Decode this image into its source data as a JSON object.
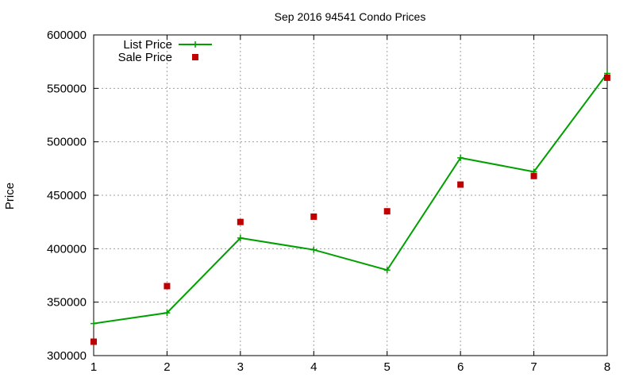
{
  "chart_data": {
    "type": "line",
    "title": "Sep 2016 94541 Condo Prices",
    "xlabel": "",
    "ylabel": "Price",
    "xlim": [
      1,
      8
    ],
    "ylim": [
      300000,
      600000
    ],
    "x_ticks": [
      1,
      2,
      3,
      4,
      5,
      6,
      7,
      8
    ],
    "y_ticks": [
      300000,
      350000,
      400000,
      450000,
      500000,
      550000,
      600000
    ],
    "grid": true,
    "legend_position": "top-left",
    "x": [
      1,
      2,
      3,
      4,
      5,
      6,
      7,
      8
    ],
    "series": [
      {
        "name": "List Price",
        "style": "lines+points",
        "marker": "plus",
        "color": "#00a000",
        "values": [
          330000,
          340000,
          410000,
          399000,
          380000,
          485000,
          472000,
          564000
        ]
      },
      {
        "name": "Sale Price",
        "style": "points",
        "marker": "square",
        "color": "#c00000",
        "values": [
          313000,
          365000,
          425000,
          430000,
          435000,
          460000,
          468000,
          560000
        ]
      }
    ]
  }
}
